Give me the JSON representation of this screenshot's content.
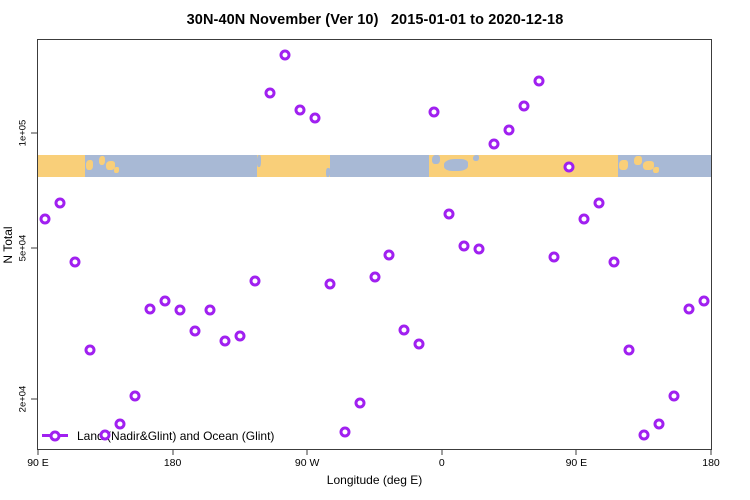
{
  "title": "30N-40N November (Ver 10)   2015-01-01 to 2020-12-18",
  "colors": {
    "marker_purple": "#a020f0",
    "map_land": "#f9cf79",
    "map_ocean": "#a8b9d5",
    "axis": "#3c3c3c",
    "background": "#ffffff"
  },
  "legend": {
    "label": "Land (Nadir&Glint) and Ocean (Glint)",
    "position": "bottom-left-inside"
  },
  "chart_data": {
    "type": "scatter",
    "title": "30N-40N November (Ver 10)   2015-01-01 to 2020-12-18",
    "xlabel": "Longitude (deg E)",
    "ylabel": "N Total",
    "x_scale": "linear",
    "y_scale": "log",
    "xlim": [
      90,
      540
    ],
    "ylim": [
      14800,
      176000
    ],
    "grid": false,
    "marker": "open-circle",
    "x_ticks": [
      {
        "lon": 90,
        "label": "90 E"
      },
      {
        "lon": 180,
        "label": "180"
      },
      {
        "lon": 270,
        "label": "90 W"
      },
      {
        "lon": 360,
        "label": "0"
      },
      {
        "lon": 450,
        "label": "90 E"
      },
      {
        "lon": 540,
        "label": "180"
      }
    ],
    "y_ticks": [
      {
        "value": 20000,
        "label": "2e+04"
      },
      {
        "value": 50000,
        "label": "5e+04"
      },
      {
        "value": 100000,
        "label": "1e+05"
      }
    ],
    "series": [
      {
        "name": "Land (Nadir&Glint) and Ocean (Glint)",
        "points": [
          {
            "lon": 95,
            "n": 59500
          },
          {
            "lon": 105,
            "n": 65800
          },
          {
            "lon": 115,
            "n": 45800
          },
          {
            "lon": 125,
            "n": 26900
          },
          {
            "lon": 135,
            "n": 16100
          },
          {
            "lon": 145,
            "n": 17200
          },
          {
            "lon": 155,
            "n": 20400
          },
          {
            "lon": 165,
            "n": 34500
          },
          {
            "lon": 175,
            "n": 36300
          },
          {
            "lon": 185,
            "n": 34300
          },
          {
            "lon": 195,
            "n": 30200
          },
          {
            "lon": 205,
            "n": 34300
          },
          {
            "lon": 215,
            "n": 28400
          },
          {
            "lon": 225,
            "n": 29300
          },
          {
            "lon": 235,
            "n": 40800
          },
          {
            "lon": 245,
            "n": 128000
          },
          {
            "lon": 255,
            "n": 161000
          },
          {
            "lon": 265,
            "n": 115000
          },
          {
            "lon": 275,
            "n": 110000
          },
          {
            "lon": 285,
            "n": 40100
          },
          {
            "lon": 295,
            "n": 16400
          },
          {
            "lon": 305,
            "n": 19600
          },
          {
            "lon": 315,
            "n": 41900
          },
          {
            "lon": 325,
            "n": 47800
          },
          {
            "lon": 335,
            "n": 30500
          },
          {
            "lon": 345,
            "n": 27900
          },
          {
            "lon": 355,
            "n": 114000
          },
          {
            "lon": 365,
            "n": 61400
          },
          {
            "lon": 375,
            "n": 50500
          },
          {
            "lon": 385,
            "n": 49800
          },
          {
            "lon": 395,
            "n": 93500
          },
          {
            "lon": 405,
            "n": 102000
          },
          {
            "lon": 415,
            "n": 118000
          },
          {
            "lon": 425,
            "n": 137000
          },
          {
            "lon": 435,
            "n": 47300
          },
          {
            "lon": 445,
            "n": 81500
          },
          {
            "lon": 455,
            "n": 59500
          },
          {
            "lon": 465,
            "n": 65800
          },
          {
            "lon": 475,
            "n": 45800
          },
          {
            "lon": 485,
            "n": 26900
          },
          {
            "lon": 495,
            "n": 16100
          },
          {
            "lon": 505,
            "n": 17200
          },
          {
            "lon": 515,
            "n": 20400
          },
          {
            "lon": 525,
            "n": 34500
          },
          {
            "lon": 535,
            "n": 36300
          }
        ]
      }
    ],
    "map_band": {
      "description": "world coastline strip for the 30N-40N latitude band drawn across the plot",
      "value_top": 88000,
      "value_bottom": 76800,
      "segments": [
        {
          "from": 0,
          "to": 7.0,
          "base": "land",
          "patch_type": null,
          "patches": []
        },
        {
          "from": 7.0,
          "to": 12.3,
          "base": "ocean",
          "patch_type": "land",
          "patches": [
            {
              "x": 2,
              "y": 25,
              "w": 20,
              "h": 45
            },
            {
              "x": 38,
              "y": 6,
              "w": 18,
              "h": 42
            },
            {
              "x": 58,
              "y": 30,
              "w": 26,
              "h": 40
            },
            {
              "x": 82,
              "y": 55,
              "w": 13,
              "h": 28
            }
          ]
        },
        {
          "from": 12.3,
          "to": 32.6,
          "base": "ocean",
          "patch_type": null,
          "patches": []
        },
        {
          "from": 32.6,
          "to": 43.4,
          "base": "land",
          "patch_type": "ocean",
          "patches": [
            {
              "x": 0,
              "y": 0,
              "w": 5,
              "h": 55
            },
            {
              "x": 95,
              "y": 60,
              "w": 5,
              "h": 40
            }
          ]
        },
        {
          "from": 43.4,
          "to": 58.1,
          "base": "ocean",
          "patch_type": null,
          "patches": []
        },
        {
          "from": 58.1,
          "to": 69.3,
          "base": "land",
          "patch_type": "ocean",
          "patches": [
            {
              "x": 4,
              "y": 0,
              "w": 10,
              "h": 42
            },
            {
              "x": 20,
              "y": 18,
              "w": 32,
              "h": 55
            },
            {
              "x": 58,
              "y": 0,
              "w": 9,
              "h": 30
            }
          ]
        },
        {
          "from": 69.3,
          "to": 86.2,
          "base": "land",
          "patch_type": null,
          "patches": []
        },
        {
          "from": 86.2,
          "to": 92.6,
          "base": "ocean",
          "patch_type": "land",
          "patches": [
            {
              "x": 2,
              "y": 25,
              "w": 20,
              "h": 45
            },
            {
              "x": 38,
              "y": 6,
              "w": 18,
              "h": 42
            },
            {
              "x": 58,
              "y": 30,
              "w": 26,
              "h": 40
            },
            {
              "x": 82,
              "y": 55,
              "w": 13,
              "h": 28
            }
          ]
        },
        {
          "from": 92.6,
          "to": 100,
          "base": "ocean",
          "patch_type": null,
          "patches": []
        }
      ]
    }
  }
}
